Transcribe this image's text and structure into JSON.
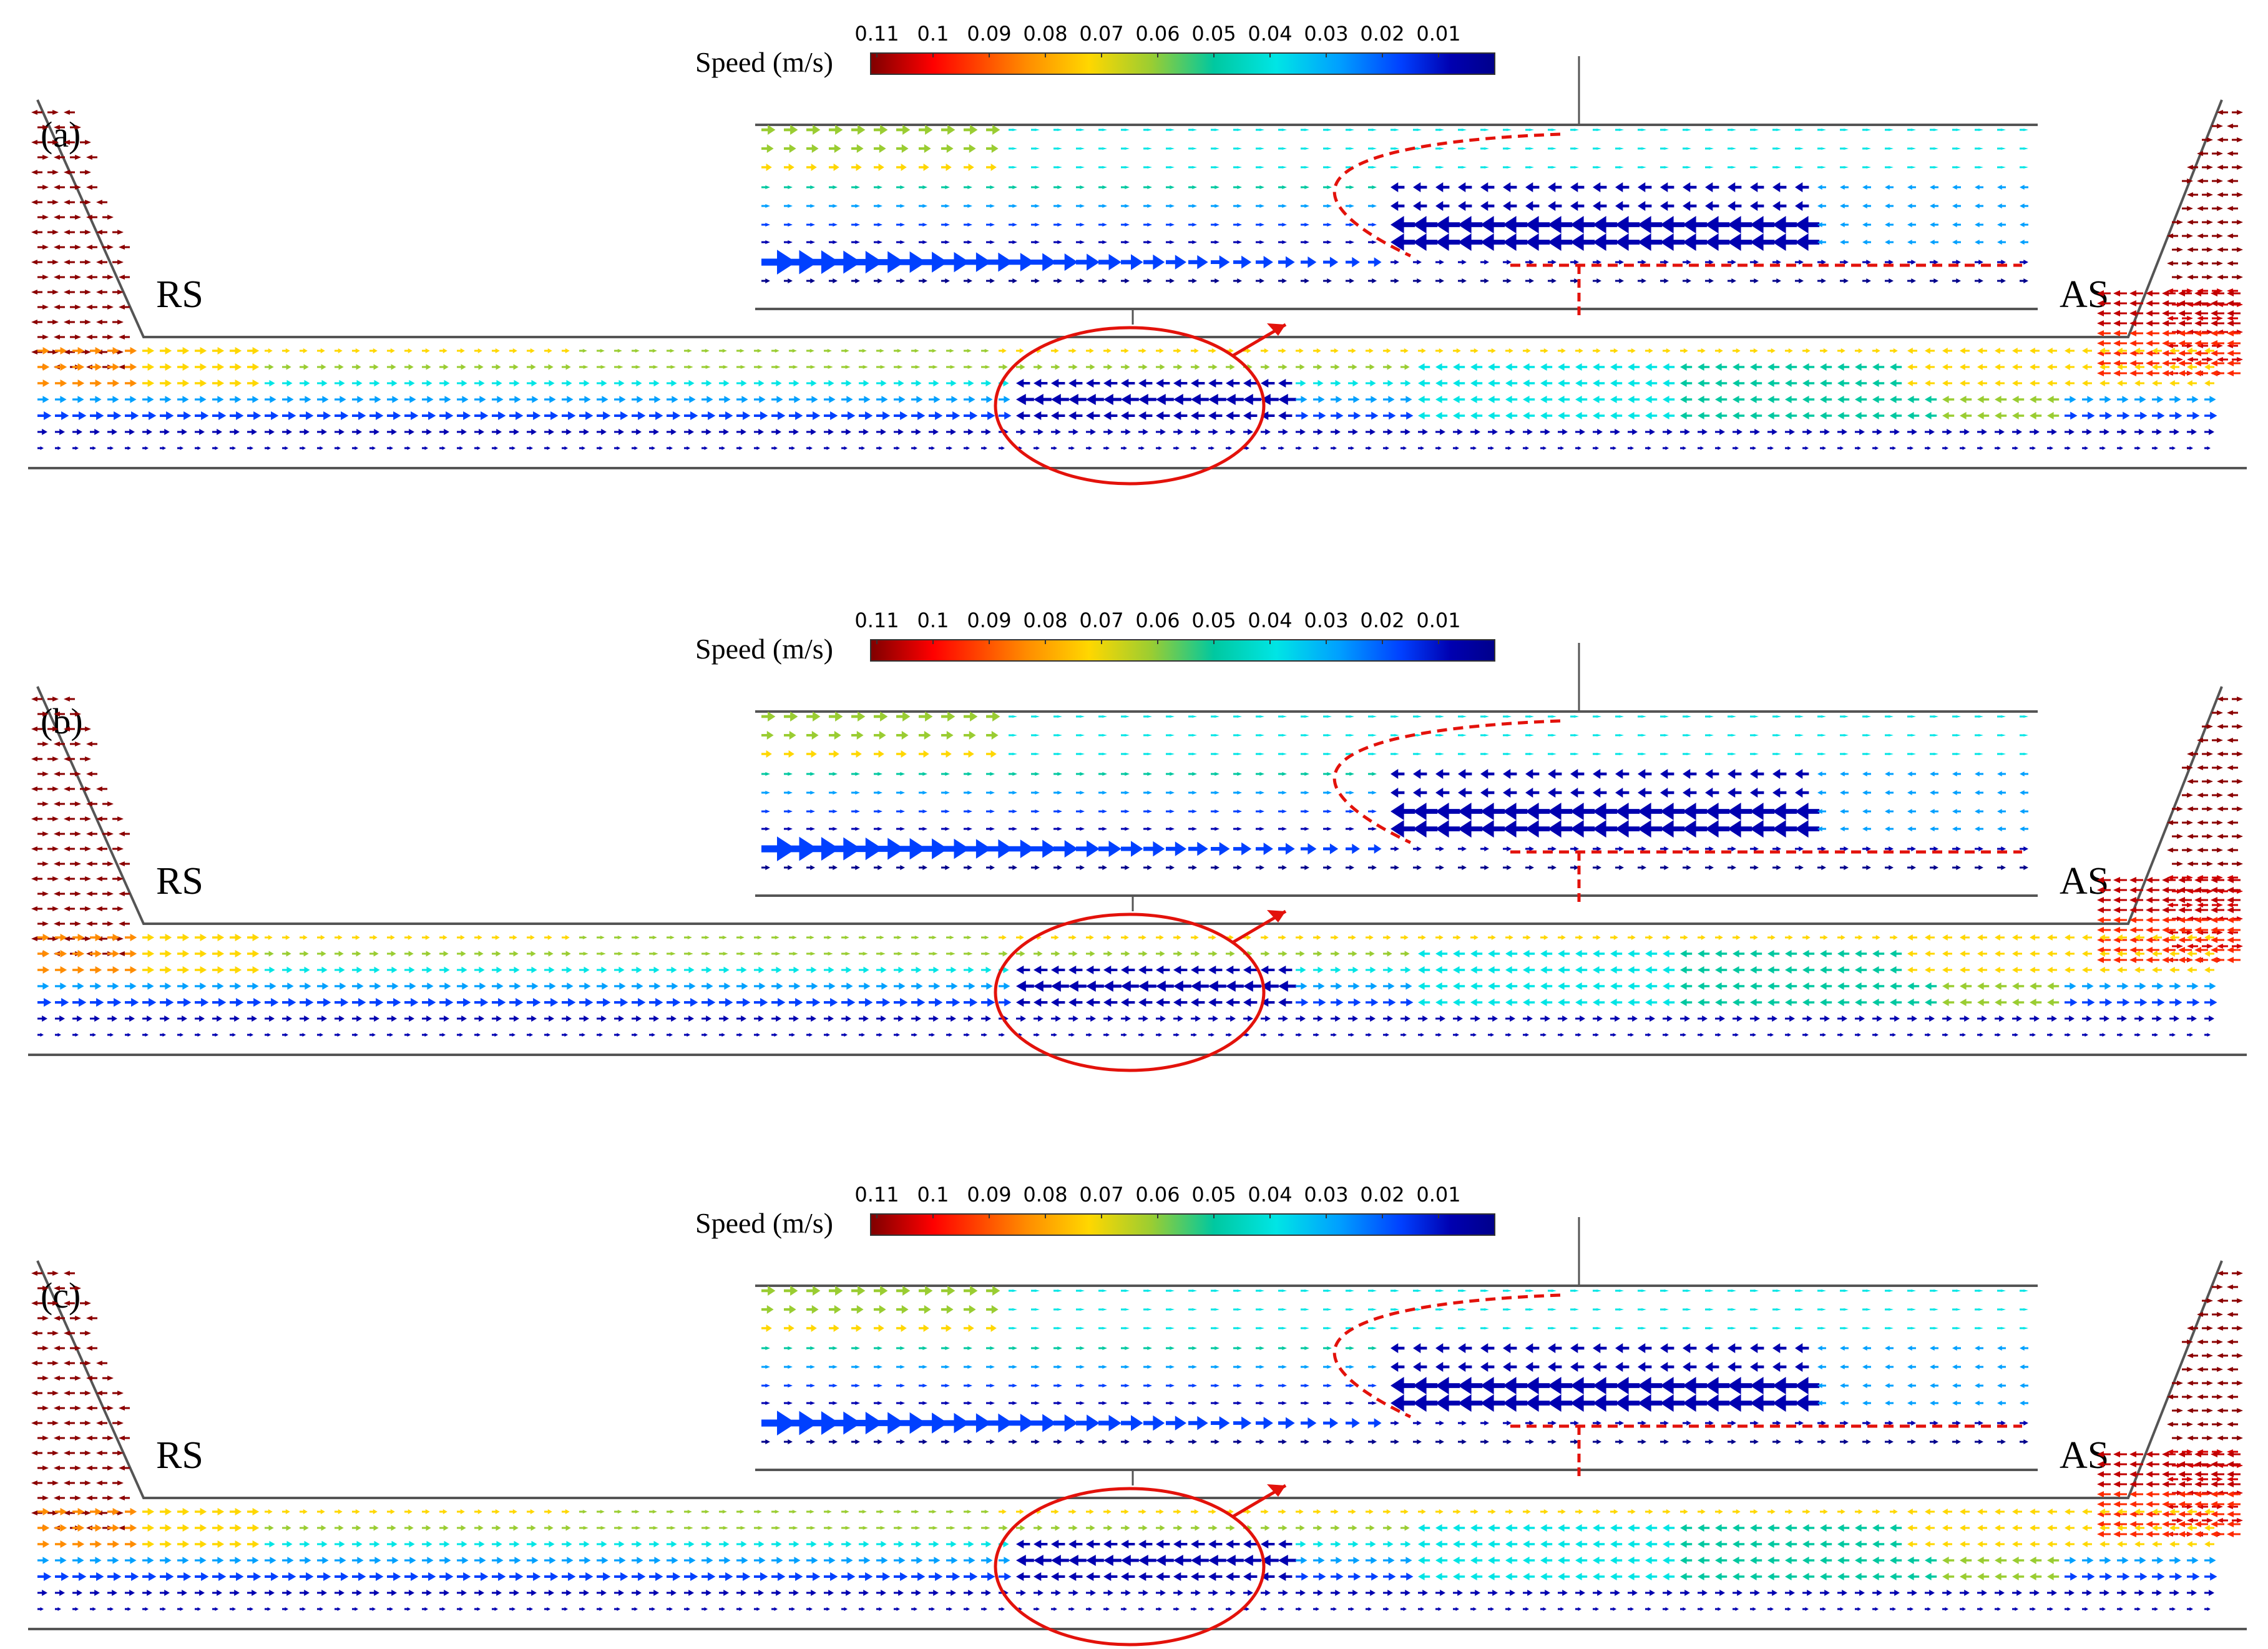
{
  "figure": {
    "legend": {
      "label": "Speed (m/s)",
      "ticks": [
        "0.11",
        "0.1",
        "0.09",
        "0.08",
        "0.07",
        "0.06",
        "0.05",
        "0.04",
        "0.03",
        "0.02",
        "0.01"
      ],
      "colors": [
        "#7f0000",
        "#ff0000",
        "#ff8c00",
        "#ffd700",
        "#9acd32",
        "#00c8a0",
        "#00e5e5",
        "#00a0ff",
        "#0040ff",
        "#0000b0",
        "#00008b"
      ]
    },
    "panels": [
      {
        "label": "(a)",
        "left_text": "RS",
        "right_text": "AS"
      },
      {
        "label": "(b)",
        "left_text": "RS",
        "right_text": "AS"
      },
      {
        "label": "(c)",
        "left_text": "RS",
        "right_text": "AS"
      }
    ],
    "colors": {
      "outline": "#555555",
      "highlight": "#e3120b",
      "dashed": "#e3120b"
    }
  }
}
